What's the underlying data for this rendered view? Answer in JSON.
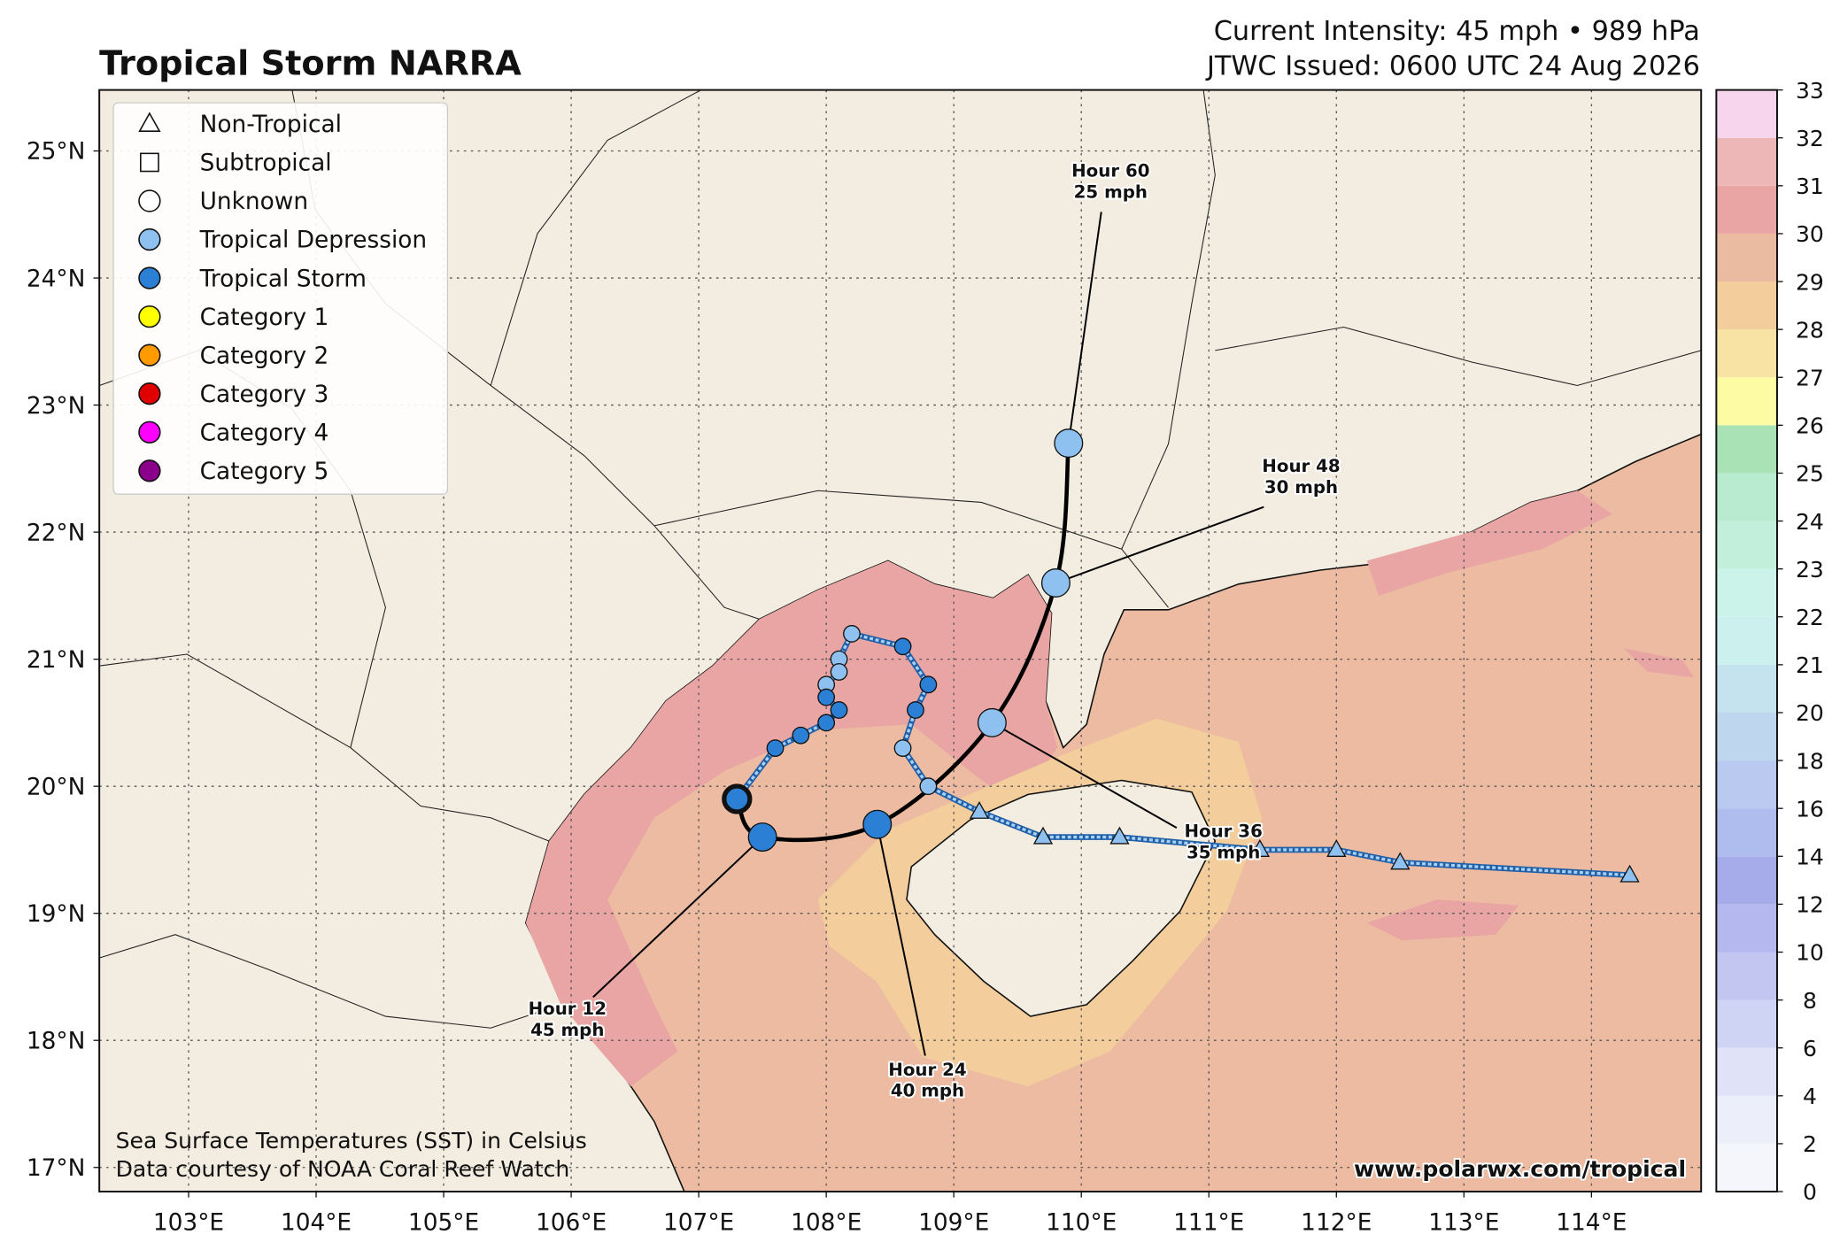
{
  "header": {
    "title": "Tropical Storm NARRA",
    "intensity": "Current Intensity: 45 mph • 989 hPa",
    "issued": "JTWC Issued: 0600 UTC 24 Aug 2026"
  },
  "legend": [
    {
      "name": "Non-Tropical",
      "shape": "triangle",
      "color": "#ffffff"
    },
    {
      "name": "Subtropical",
      "shape": "square",
      "color": "#ffffff"
    },
    {
      "name": "Unknown",
      "shape": "circle",
      "color": "#ffffff"
    },
    {
      "name": "Tropical Depression",
      "shape": "circle",
      "color": "#8ec1f0"
    },
    {
      "name": "Tropical Storm",
      "shape": "circle",
      "color": "#2b7fd4"
    },
    {
      "name": "Category 1",
      "shape": "circle",
      "color": "#ffff00"
    },
    {
      "name": "Category 2",
      "shape": "circle",
      "color": "#ff9a00"
    },
    {
      "name": "Category 3",
      "shape": "circle",
      "color": "#e00000"
    },
    {
      "name": "Category 4",
      "shape": "circle",
      "color": "#ff00ff"
    },
    {
      "name": "Category 5",
      "shape": "circle",
      "color": "#8b008b"
    }
  ],
  "map": {
    "xlim": [
      102.3,
      114.86
    ],
    "ylim": [
      16.81,
      25.48
    ],
    "grid": true,
    "xticks": [
      {
        "value": 103,
        "label": "103°E"
      },
      {
        "value": 104,
        "label": "104°E"
      },
      {
        "value": 105,
        "label": "105°E"
      },
      {
        "value": 106,
        "label": "106°E"
      },
      {
        "value": 107,
        "label": "107°E"
      },
      {
        "value": 108,
        "label": "108°E"
      },
      {
        "value": 109,
        "label": "109°E"
      },
      {
        "value": 110,
        "label": "110°E"
      },
      {
        "value": 111,
        "label": "111°E"
      },
      {
        "value": 112,
        "label": "112°E"
      },
      {
        "value": 113,
        "label": "113°E"
      },
      {
        "value": 114,
        "label": "114°E"
      }
    ],
    "yticks": [
      {
        "value": 17,
        "label": "17°N"
      },
      {
        "value": 18,
        "label": "18°N"
      },
      {
        "value": 19,
        "label": "19°N"
      },
      {
        "value": 20,
        "label": "20°N"
      },
      {
        "value": 21,
        "label": "21°N"
      },
      {
        "value": 22,
        "label": "22°N"
      },
      {
        "value": 23,
        "label": "23°N"
      },
      {
        "value": 24,
        "label": "24°N"
      },
      {
        "value": 25,
        "label": "25°N"
      }
    ],
    "track": [
      {
        "lon": 114.3,
        "lat": 19.3,
        "shape": "triangle",
        "color": "#8ec1f0"
      },
      {
        "lon": 112.5,
        "lat": 19.4,
        "shape": "triangle",
        "color": "#8ec1f0"
      },
      {
        "lon": 112.0,
        "lat": 19.5,
        "shape": "triangle",
        "color": "#8ec1f0"
      },
      {
        "lon": 111.4,
        "lat": 19.5,
        "shape": "triangle",
        "color": "#8ec1f0"
      },
      {
        "lon": 110.3,
        "lat": 19.6,
        "shape": "triangle",
        "color": "#8ec1f0"
      },
      {
        "lon": 109.7,
        "lat": 19.6,
        "shape": "triangle",
        "color": "#8ec1f0"
      },
      {
        "lon": 109.2,
        "lat": 19.8,
        "shape": "triangle",
        "color": "#8ec1f0"
      },
      {
        "lon": 108.8,
        "lat": 20.0,
        "shape": "circle",
        "color": "#8ec1f0"
      },
      {
        "lon": 108.6,
        "lat": 20.3,
        "shape": "circle",
        "color": "#8ec1f0"
      },
      {
        "lon": 108.7,
        "lat": 20.6,
        "shape": "circle",
        "color": "#2b7fd4"
      },
      {
        "lon": 108.8,
        "lat": 20.8,
        "shape": "circle",
        "color": "#2b7fd4"
      },
      {
        "lon": 108.6,
        "lat": 21.1,
        "shape": "circle",
        "color": "#2b7fd4"
      },
      {
        "lon": 108.2,
        "lat": 21.2,
        "shape": "circle",
        "color": "#8ec1f0"
      },
      {
        "lon": 108.1,
        "lat": 21.0,
        "shape": "circle",
        "color": "#8ec1f0"
      },
      {
        "lon": 108.1,
        "lat": 20.9,
        "shape": "circle",
        "color": "#8ec1f0"
      },
      {
        "lon": 108.0,
        "lat": 20.8,
        "shape": "circle",
        "color": "#8ec1f0"
      },
      {
        "lon": 108.0,
        "lat": 20.7,
        "shape": "circle",
        "color": "#2b7fd4"
      },
      {
        "lon": 108.1,
        "lat": 20.6,
        "shape": "circle",
        "color": "#2b7fd4"
      },
      {
        "lon": 108.0,
        "lat": 20.5,
        "shape": "circle",
        "color": "#2b7fd4"
      },
      {
        "lon": 107.8,
        "lat": 20.4,
        "shape": "circle",
        "color": "#2b7fd4"
      },
      {
        "lon": 107.6,
        "lat": 20.3,
        "shape": "circle",
        "color": "#2b7fd4"
      }
    ],
    "current": {
      "lon": 107.3,
      "lat": 19.9,
      "color": "#2b7fd4"
    },
    "forecast": [
      {
        "lon": 107.5,
        "lat": 19.6,
        "color": "#2b7fd4",
        "hour": "Hour 12",
        "wind": "45 mph"
      },
      {
        "lon": 108.4,
        "lat": 19.7,
        "color": "#2b7fd4",
        "hour": "Hour 24",
        "wind": "40 mph"
      },
      {
        "lon": 109.3,
        "lat": 20.5,
        "color": "#8ec1f0",
        "hour": "Hour 36",
        "wind": "35 mph"
      },
      {
        "lon": 109.8,
        "lat": 21.6,
        "color": "#8ec1f0",
        "hour": "Hour 48",
        "wind": "30 mph"
      },
      {
        "lon": 109.9,
        "lat": 22.7,
        "color": "#8ec1f0",
        "hour": "Hour 60",
        "wind": "25 mph"
      }
    ]
  },
  "colorbar": {
    "ticks": [
      0,
      2,
      4,
      6,
      8,
      10,
      12,
      14,
      16,
      18,
      20,
      21,
      22,
      23,
      24,
      25,
      26,
      27,
      28,
      29,
      30,
      31,
      32,
      33
    ],
    "colors": [
      "#f5f5fc",
      "#eceefa",
      "#e0e2f7",
      "#d0d4f4",
      "#c2c6f0",
      "#b4b8ee",
      "#a6acea",
      "#afbdee",
      "#b9c9ef",
      "#bfd6ef",
      "#c4e3ee",
      "#cbf0ee",
      "#cbf3e9",
      "#c2efdc",
      "#b8ebd0",
      "#a9e2b5",
      "#fdfba4",
      "#f8e2a4",
      "#f3cd9b",
      "#ebbba1",
      "#e8a5a3",
      "#edb6b7",
      "#f7d5ec"
    ]
  },
  "footer": {
    "sst_note": "Sea Surface Temperatures (SST) in Celsius",
    "credit": "Data courtesy of NOAA Coral Reef Watch",
    "website": "www.polarwx.com/tropical"
  }
}
